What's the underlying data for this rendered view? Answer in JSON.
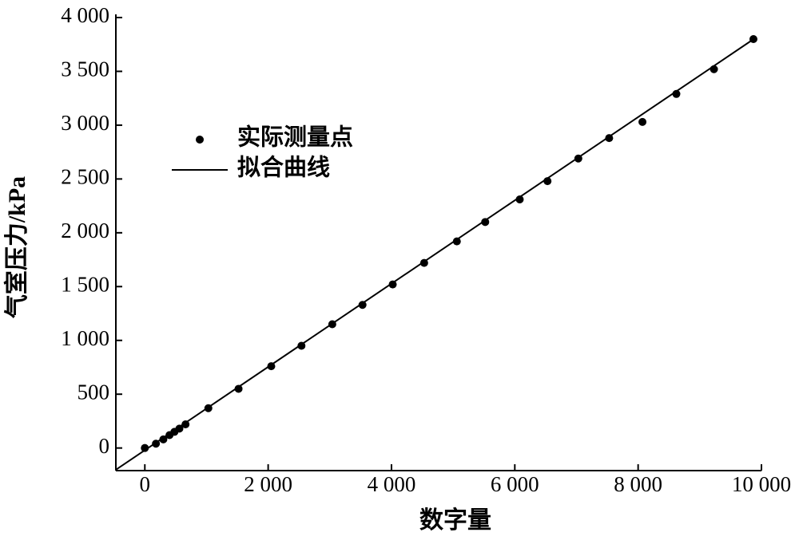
{
  "chart_data": {
    "type": "scatter",
    "xlabel": "数字量",
    "ylabel": "气室压力/kPa",
    "xlim": [
      -470,
      10000
    ],
    "ylim": [
      -210,
      4000
    ],
    "xticks": [
      0,
      {
        "value": 2000,
        "label": "2 000"
      },
      {
        "value": 4000,
        "label": "4 000"
      },
      {
        "value": 6000,
        "label": "6 000"
      },
      {
        "value": 8000,
        "label": "8 000"
      },
      {
        "value": 10000,
        "label": "10 000"
      }
    ],
    "yticks": [
      0,
      500,
      {
        "value": 1000,
        "label": "1 000"
      },
      {
        "value": 1500,
        "label": "1 500"
      },
      {
        "value": 2000,
        "label": "2 000"
      },
      {
        "value": 2500,
        "label": "2 500"
      },
      {
        "value": 3000,
        "label": "3 000"
      },
      {
        "value": 3500,
        "label": "3 500"
      },
      {
        "value": 4000,
        "label": "4 000"
      }
    ],
    "series": [
      {
        "name": "实际测量点",
        "type": "scatter",
        "color": "#000000",
        "x": [
          0,
          180,
          300,
          400,
          480,
          560,
          660,
          1030,
          1520,
          2050,
          2540,
          3040,
          3530,
          4020,
          4530,
          5060,
          5520,
          6080,
          6530,
          7030,
          7530,
          8070,
          8620,
          9230,
          9870
        ],
        "values": [
          0,
          40,
          80,
          120,
          150,
          180,
          220,
          370,
          550,
          760,
          950,
          1150,
          1330,
          1520,
          1720,
          1920,
          2100,
          2310,
          2480,
          2690,
          2880,
          3030,
          3290,
          3520,
          3800
        ]
      },
      {
        "name": "拟合曲线",
        "type": "line",
        "color": "#000000",
        "x": [
          -470,
          9900
        ],
        "values": [
          -202,
          3810
        ]
      }
    ]
  }
}
